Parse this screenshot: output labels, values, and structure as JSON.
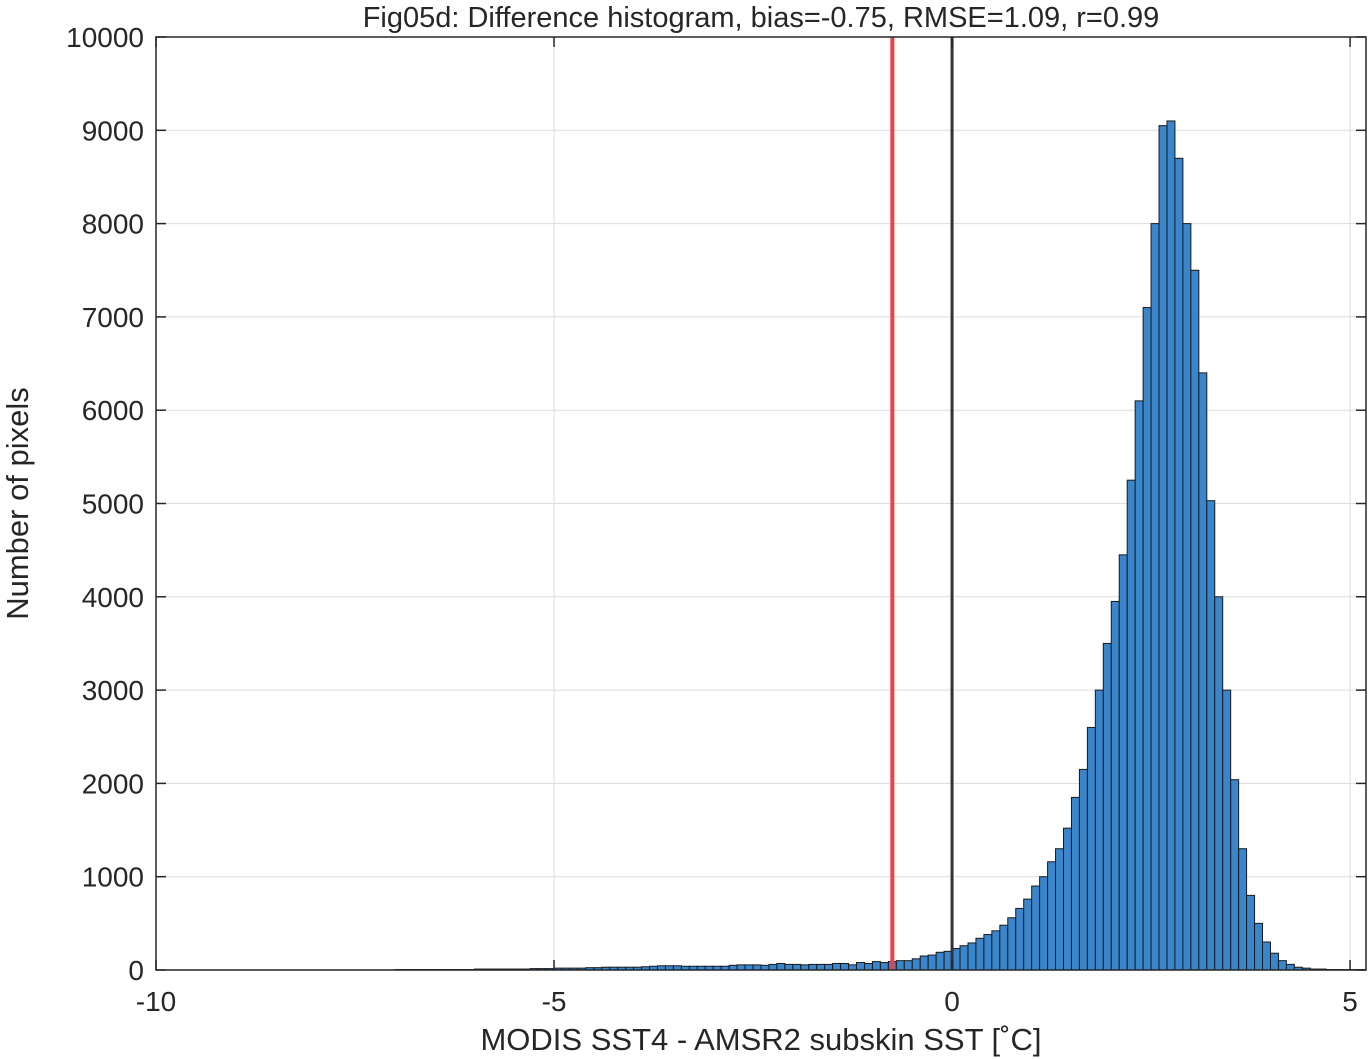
{
  "chart_data": {
    "type": "bar",
    "title": "Fig05d: Difference histogram, bias=-0.75, RMSE=1.09, r=0.99",
    "xlabel": "MODIS SST4 - AMSR2 subskin SST [˚C]",
    "ylabel": "Number of pixels",
    "xlim": [
      -10,
      5.2
    ],
    "ylim": [
      0,
      10000
    ],
    "xticks": [
      -10,
      -5,
      0,
      5
    ],
    "xtick_labels": [
      "-10",
      "-5",
      "0",
      "5"
    ],
    "yticks": [
      0,
      1000,
      2000,
      3000,
      4000,
      5000,
      6000,
      7000,
      8000,
      9000,
      10000
    ],
    "ytick_labels": [
      "0",
      "1000",
      "2000",
      "3000",
      "4000",
      "5000",
      "6000",
      "7000",
      "8000",
      "9000",
      "10000"
    ],
    "grid": true,
    "bin_start": -10,
    "bin_width": 0.1,
    "counts": [
      0,
      0,
      0,
      0,
      0,
      0,
      0,
      0,
      0,
      0,
      0,
      0,
      0,
      0,
      0,
      0,
      0,
      0,
      0,
      0,
      0,
      0,
      0,
      0,
      0,
      0,
      0,
      0,
      0,
      0,
      5,
      5,
      5,
      5,
      5,
      5,
      5,
      5,
      5,
      5,
      10,
      10,
      10,
      10,
      10,
      10,
      10,
      15,
      15,
      15,
      20,
      20,
      20,
      20,
      25,
      25,
      30,
      30,
      30,
      30,
      30,
      35,
      40,
      45,
      45,
      45,
      40,
      40,
      40,
      40,
      40,
      40,
      50,
      55,
      55,
      55,
      50,
      60,
      70,
      60,
      60,
      55,
      60,
      60,
      60,
      70,
      70,
      55,
      80,
      70,
      90,
      80,
      90,
      100,
      100,
      120,
      150,
      160,
      190,
      200,
      230,
      260,
      290,
      340,
      380,
      420,
      480,
      560,
      660,
      760,
      900,
      1000,
      1160,
      1300,
      1520,
      1850,
      2150,
      2600,
      3000,
      3500,
      3950,
      4450,
      5250,
      6100,
      7100,
      8000,
      9050,
      9100,
      8700,
      8000,
      7500,
      6400,
      5030,
      4000,
      3000,
      2040,
      1300,
      800,
      500,
      300,
      180,
      100,
      60,
      30,
      20,
      10,
      10,
      5,
      5,
      5,
      5,
      5,
      0,
      0,
      0,
      0,
      0,
      0,
      0,
      0,
      0,
      0,
      0,
      0,
      0,
      0,
      0,
      0,
      0,
      0,
      0,
      0,
      0,
      0,
      0,
      0,
      0,
      0,
      0,
      0,
      0,
      0,
      0,
      0,
      0,
      0,
      0,
      0,
      0,
      0,
      0,
      0
    ],
    "bar_color": "#3a86cc",
    "bar_edge_color": "#1a1a1a",
    "reference_lines": [
      {
        "x": -0.75,
        "color": "#e8434a"
      },
      {
        "x": 0,
        "color": "#333333"
      }
    ]
  }
}
